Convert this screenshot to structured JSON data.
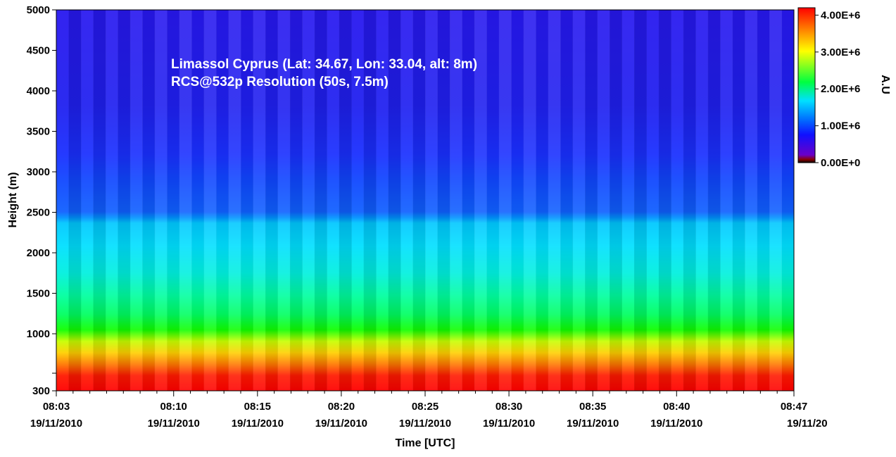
{
  "chart_data": {
    "type": "heatmap",
    "annotation": [
      "Limassol Cyprus (Lat: 34.67, Lon: 33.04, alt: 8m)",
      "RCS@532p Resolution (50s, 7.5m)"
    ],
    "xlabel": "Time [UTC]",
    "ylabel": "Height (m)",
    "x_ticks": [
      {
        "time": "08:03",
        "date": "19/11/2010"
      },
      {
        "time": "08:10",
        "date": "19/11/2010"
      },
      {
        "time": "08:15",
        "date": "19/11/2010"
      },
      {
        "time": "08:20",
        "date": "19/11/2010"
      },
      {
        "time": "08:25",
        "date": "19/11/2010"
      },
      {
        "time": "08:30",
        "date": "19/11/2010"
      },
      {
        "time": "08:35",
        "date": "19/11/2010"
      },
      {
        "time": "08:40",
        "date": "19/11/2010"
      },
      {
        "time": "08:47",
        "date": "19/11/20"
      }
    ],
    "y_ticks": [
      "5000",
      "4500",
      "4000",
      "3500",
      "3000",
      "2500",
      "2000",
      "1500",
      "1000",
      "",
      "300"
    ],
    "y_tick_values": [
      5000,
      4500,
      4000,
      3500,
      3000,
      2500,
      2000,
      1500,
      1000,
      500,
      300
    ],
    "ylim": [
      300,
      5000
    ],
    "xlim": [
      "08:03",
      "08:47"
    ],
    "colorbar": {
      "label": "A.U",
      "ticks": [
        "4.00E+6",
        "3.00E+6",
        "2.00E+6",
        "1.00E+6",
        "0.00E+0"
      ],
      "tick_values": [
        4000000,
        3000000,
        2000000,
        1000000,
        0
      ],
      "range": [
        0,
        4200000
      ],
      "colors": [
        "#000000",
        "#8b0000",
        "#6a00c8",
        "#0000ff",
        "#0070ff",
        "#00e0ff",
        "#00ff40",
        "#ffff00",
        "#ff8000",
        "#ff0000"
      ]
    },
    "profile": [
      {
        "height": 300,
        "value": 4100000
      },
      {
        "height": 450,
        "value": 3800000
      },
      {
        "height": 650,
        "value": 3400000
      },
      {
        "height": 850,
        "value": 2700000
      },
      {
        "height": 1000,
        "value": 2250000
      },
      {
        "height": 1300,
        "value": 1700000
      },
      {
        "height": 1600,
        "value": 1450000
      },
      {
        "height": 2000,
        "value": 1250000
      },
      {
        "height": 2400,
        "value": 1150000
      },
      {
        "height": 2500,
        "value": 900000
      },
      {
        "height": 2600,
        "value": 750000
      },
      {
        "height": 3000,
        "value": 600000
      },
      {
        "height": 3300,
        "value": 450000
      },
      {
        "height": 4000,
        "value": 350000
      },
      {
        "height": 5000,
        "value": 300000
      }
    ]
  }
}
